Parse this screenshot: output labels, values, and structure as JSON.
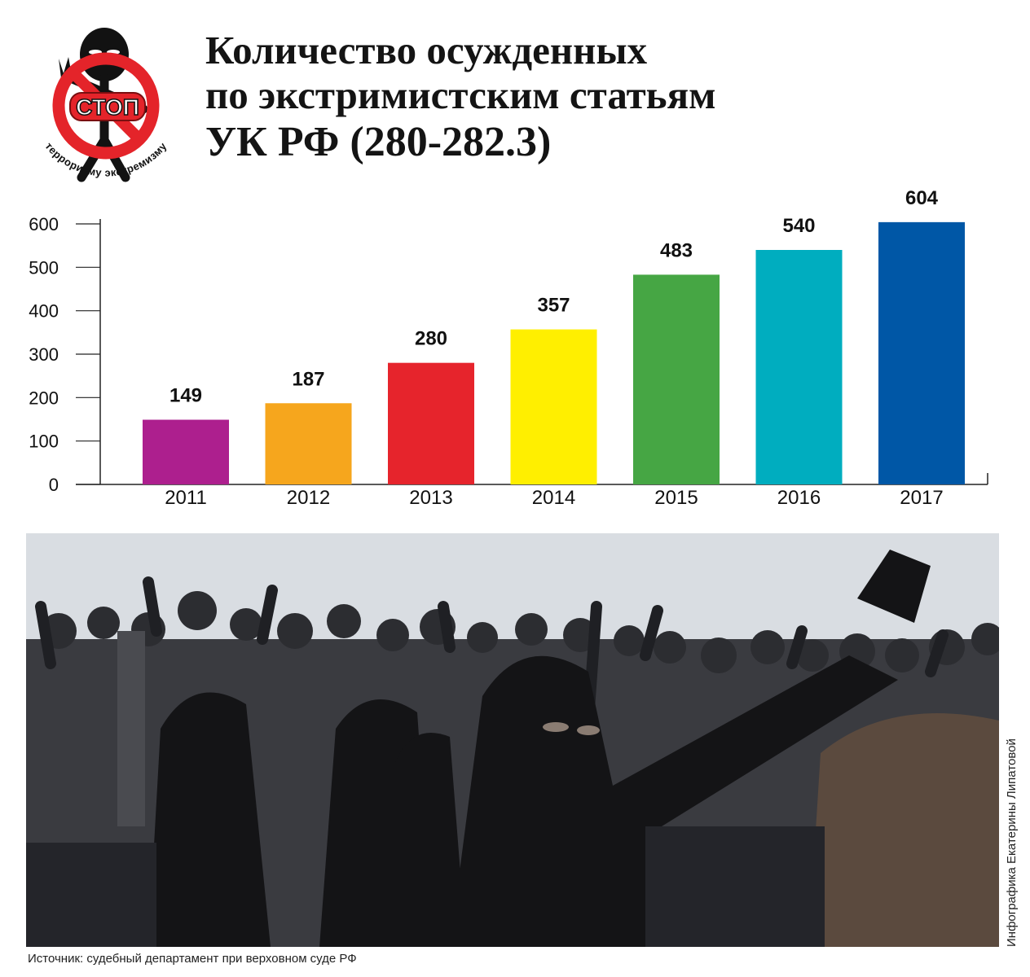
{
  "title_lines": [
    "Количество осужденных",
    "по экстримистским статьям",
    "УК РФ (280-282.3)"
  ],
  "logo": {
    "stop_text": "СТОП",
    "arc_text": "терроризму экстремизму",
    "colors": {
      "ring": "#e4242a",
      "figure": "#121212"
    }
  },
  "chart_data": {
    "type": "bar",
    "categories": [
      "2011",
      "2012",
      "2013",
      "2014",
      "2015",
      "2016",
      "2017"
    ],
    "values": [
      149,
      187,
      280,
      357,
      483,
      540,
      604
    ],
    "colors": [
      "#ad1f8e",
      "#f6a61d",
      "#e6242c",
      "#ffef00",
      "#46a644",
      "#00adbf",
      "#0057a6"
    ],
    "ylim": [
      0,
      600
    ],
    "yticks": [
      0,
      100,
      200,
      300,
      400,
      500,
      600
    ],
    "data_labels": true,
    "grid": false,
    "legend": "none"
  },
  "photo": {
    "subject": "crowd-of-masked-protesters",
    "colors": {
      "sky": "#d9dde2",
      "crowd": "#3a3b40",
      "dark": "#141416"
    }
  },
  "source": "Источник: судебный департамент при верховном суде РФ",
  "credit": "Инфографика Екатерины Липатовой"
}
